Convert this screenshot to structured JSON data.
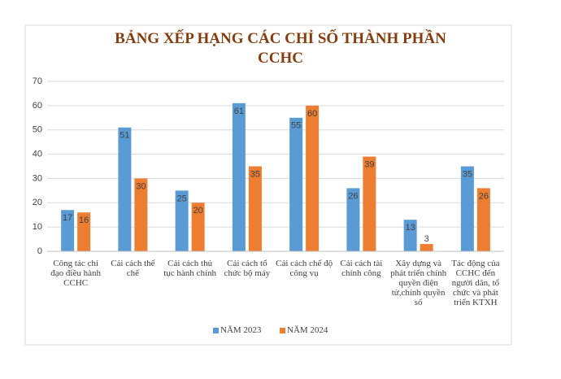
{
  "chart_data": {
    "type": "bar",
    "title": "BẢNG XẾP HẠNG CÁC CHỈ SỐ THÀNH PHẦN CCHC",
    "categories": [
      "Công tác chỉ đạo điều hành CCHC",
      "Cải cách thể chế",
      "Cải cách thủ tục hành chính",
      "Cải cách tổ chức bộ máy",
      "Cải cách chế độ công vụ",
      "Cải cách tài chính công",
      "Xây dựng và phát triển chính quyền điện tử,chính quyền số",
      "Tác động của CCHC đến người dân, tổ chức và phát triển KTXH"
    ],
    "series": [
      {
        "name": "NĂM 2023",
        "color": "#5b9bd5",
        "values": [
          17,
          51,
          25,
          61,
          55,
          26,
          13,
          35
        ]
      },
      {
        "name": "NĂM 2024",
        "color": "#ed7d31",
        "values": [
          16,
          30,
          20,
          35,
          60,
          39,
          3,
          26
        ]
      }
    ],
    "ylim": [
      0,
      70
    ],
    "yticks": [
      0,
      10,
      20,
      30,
      40,
      50,
      60,
      70
    ],
    "grid": true,
    "legend": "bottom"
  }
}
